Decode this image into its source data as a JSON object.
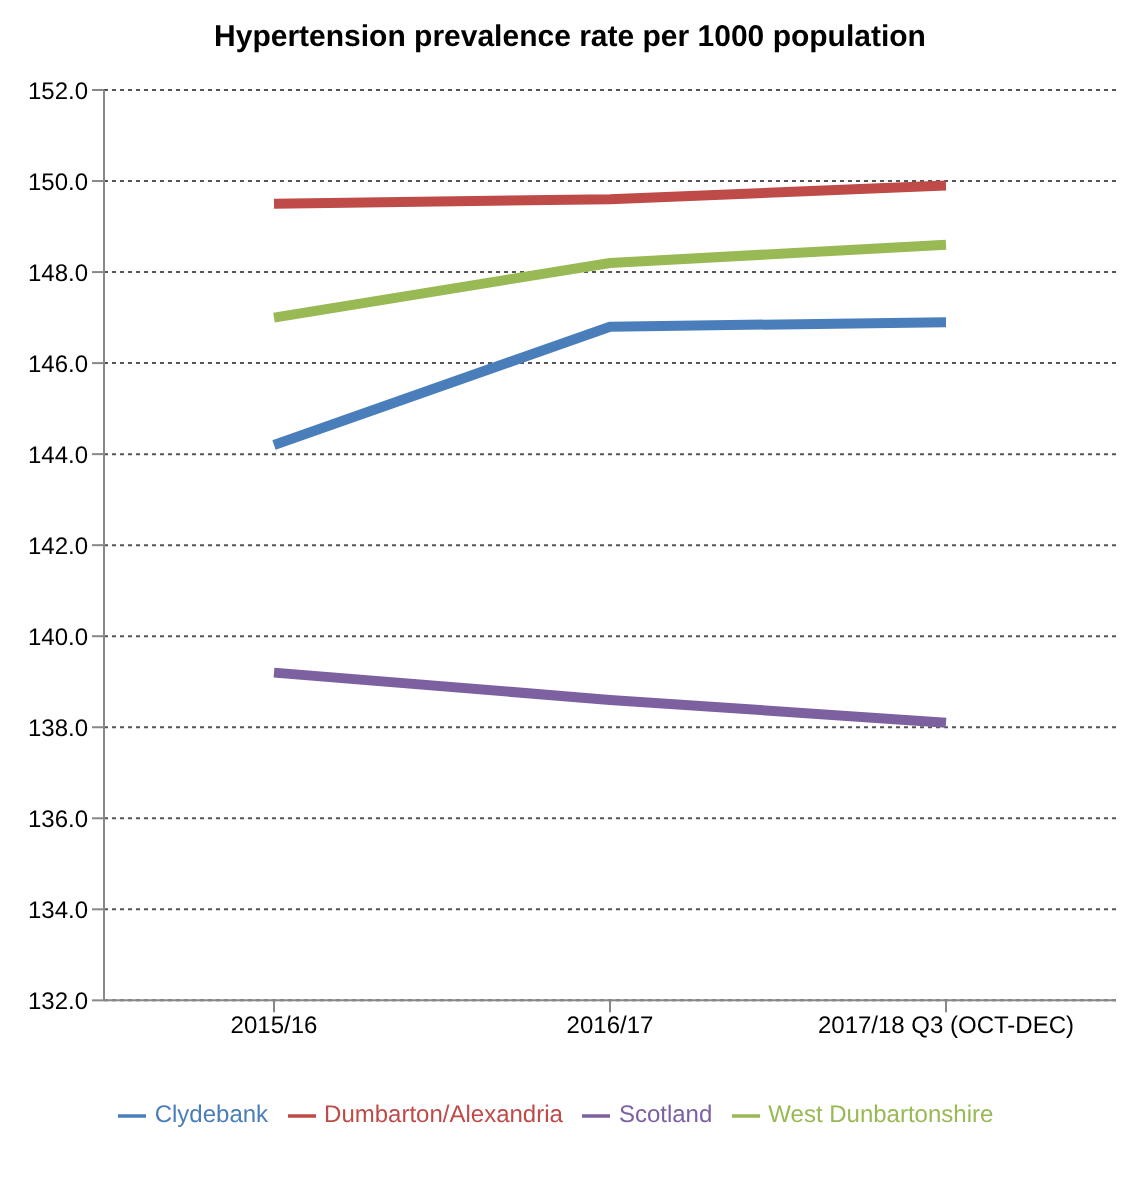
{
  "chart_data": {
    "type": "line",
    "title": "Hypertension prevalence rate per 1000 population",
    "categories": [
      "2015/16",
      "2016/17",
      "2017/18 Q3 (OCT-DEC)"
    ],
    "series": [
      {
        "name": "Clydebank",
        "color": "#4a7ebb",
        "values": [
          144.2,
          146.8,
          146.9
        ]
      },
      {
        "name": "Dumbarton/Alexandria",
        "color": "#be4b48",
        "values": [
          149.5,
          149.6,
          149.9
        ]
      },
      {
        "name": "Scotland",
        "color": "#7d60a0",
        "values": [
          139.2,
          138.6,
          138.1
        ]
      },
      {
        "name": "West Dunbartonshire",
        "color": "#98b954",
        "values": [
          147.0,
          148.2,
          148.6
        ]
      }
    ],
    "ylim": [
      132,
      152
    ],
    "yticks": [
      {
        "value": 132,
        "label": "132.0"
      },
      {
        "value": 134,
        "label": "134.0"
      },
      {
        "value": 136,
        "label": "136.0"
      },
      {
        "value": 138,
        "label": "138.0"
      },
      {
        "value": 140,
        "label": "140.0"
      },
      {
        "value": 142,
        "label": "142.0"
      },
      {
        "value": 144,
        "label": "144.0"
      },
      {
        "value": 146,
        "label": "146.0"
      },
      {
        "value": 148,
        "label": "148.0"
      },
      {
        "value": 150,
        "label": "150.0"
      },
      {
        "value": 152,
        "label": "152.0"
      }
    ],
    "grid": "y",
    "legend": "bottom",
    "marker": "none",
    "line_style": "solid"
  }
}
